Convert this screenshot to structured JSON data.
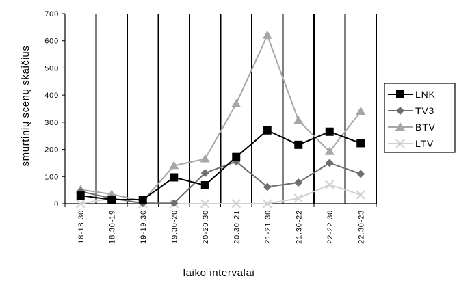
{
  "chart_data": {
    "type": "line",
    "title": "",
    "xlabel": "laiko intervalai",
    "ylabel": "smurtinių scenų skaičius",
    "ylim": [
      0,
      700
    ],
    "y_ticks": [
      0,
      100,
      200,
      300,
      400,
      500,
      600,
      700
    ],
    "grid": "vertical lines between categories",
    "legend_position": "right",
    "categories": [
      "18-18.30",
      "18.30-19",
      "19-19.30",
      "19.30-20",
      "20-20.30",
      "20.30-21",
      "21-21.30",
      "21.30-22",
      "22-22.30",
      "22.30-23"
    ],
    "series": [
      {
        "name": "LNK",
        "color": "#000000",
        "marker": "square",
        "values": [
          30,
          15,
          15,
          97,
          68,
          172,
          270,
          217,
          265,
          223
        ]
      },
      {
        "name": "TV3",
        "color": "#6e6e6e",
        "marker": "diamond",
        "values": [
          45,
          20,
          2,
          2,
          113,
          155,
          62,
          78,
          150,
          110
        ]
      },
      {
        "name": "BTV",
        "color": "#a6a6a6",
        "marker": "triangle",
        "values": [
          52,
          35,
          10,
          140,
          165,
          368,
          620,
          307,
          192,
          340
        ]
      },
      {
        "name": "LTV",
        "color": "#d0d0d0",
        "marker": "x",
        "values": [
          0,
          20,
          0,
          0,
          0,
          0,
          0,
          20,
          70,
          33
        ]
      }
    ]
  }
}
